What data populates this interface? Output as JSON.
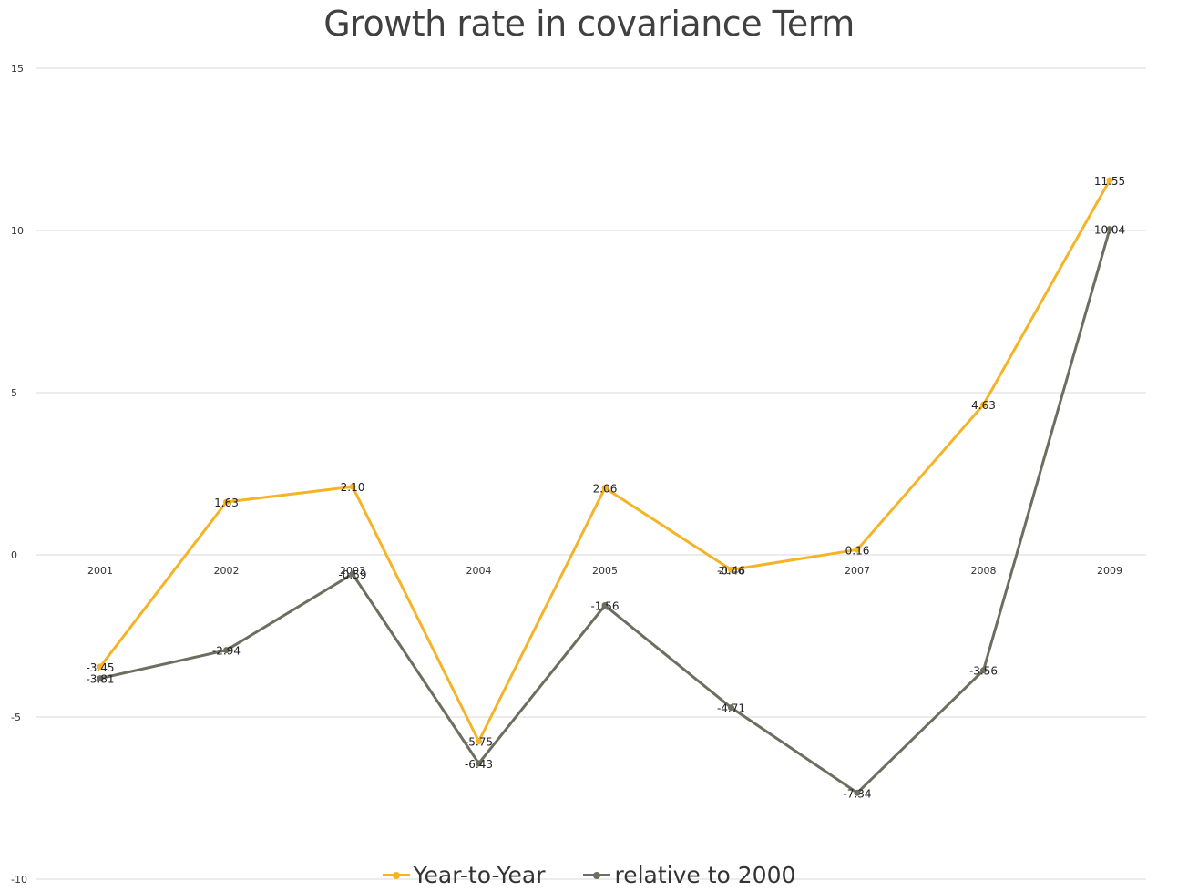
{
  "chart_data": {
    "type": "line",
    "title": "Growth rate in covariance Term",
    "categories": [
      "2001",
      "2002",
      "2003",
      "2004",
      "2005",
      "2006",
      "2007",
      "2008",
      "2009"
    ],
    "ylim": [
      -10,
      15
    ],
    "yticks": [
      -10,
      -5,
      0,
      5,
      10,
      15
    ],
    "grid": true,
    "legend_position": "bottom",
    "series": [
      {
        "name": "Year-to-Year",
        "color": "#F5B427",
        "values": [
          -3.45,
          1.63,
          2.1,
          -5.75,
          2.06,
          -0.46,
          0.16,
          4.63,
          11.55
        ],
        "labels": [
          "-3.45",
          "1.63",
          "2.10",
          "-5.75",
          "2.06",
          "-0.46",
          "0.16",
          "4.63",
          "11.55"
        ]
      },
      {
        "name": "relative to 2000",
        "color": "#6B6F5F",
        "values": [
          -3.81,
          -2.94,
          -0.59,
          -6.43,
          -1.56,
          -4.71,
          -7.34,
          -3.56,
          10.04
        ],
        "labels": [
          "-3.81",
          "-2.94",
          "-0.59",
          "-6.43",
          "-1.56",
          "-4.71",
          "-7.34",
          "-3.56",
          "10.04"
        ]
      }
    ]
  }
}
